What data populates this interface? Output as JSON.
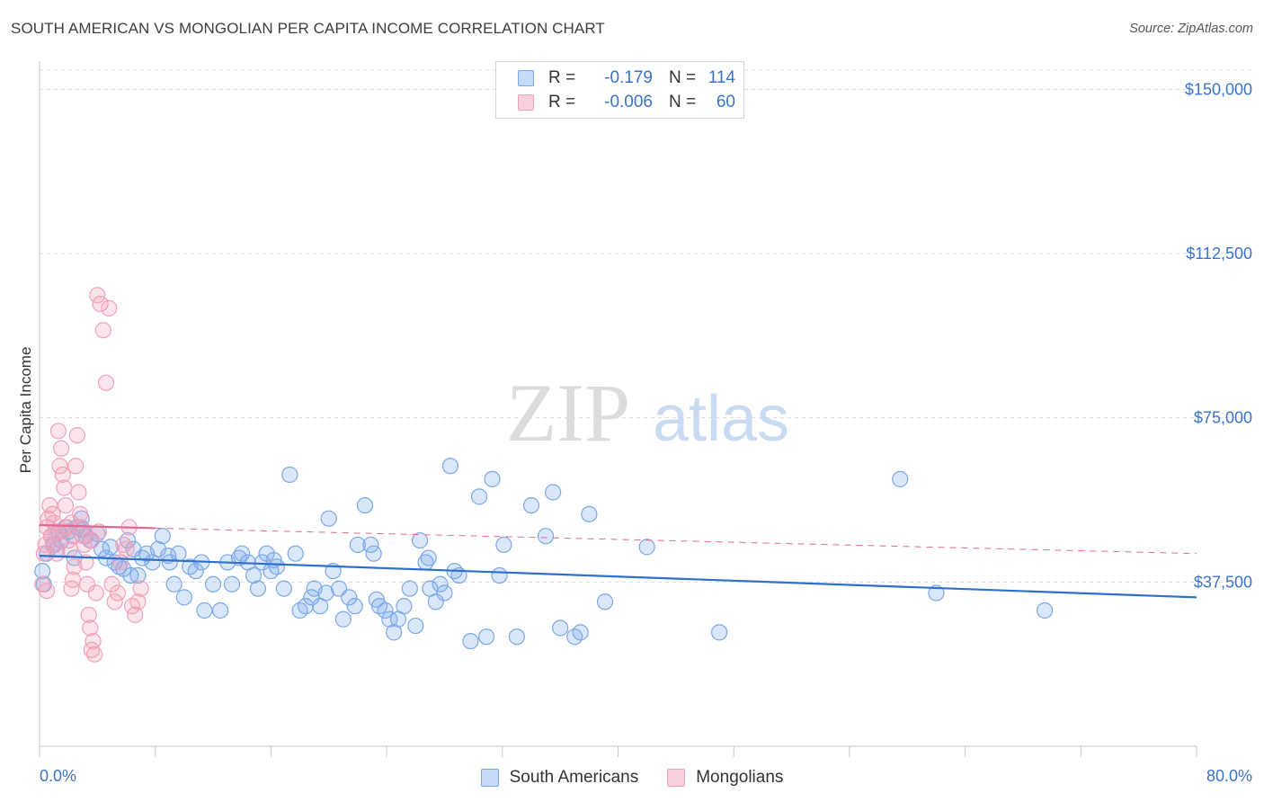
{
  "title": "SOUTH AMERICAN VS MONGOLIAN PER CAPITA INCOME CORRELATION CHART",
  "source": "Source: ZipAtlas.com",
  "watermark": {
    "zip": "ZIP",
    "atlas": "atlas"
  },
  "legend": {
    "rows": [
      {
        "r_label": "R =",
        "r_value": "-0.179",
        "n_label": "N =",
        "n_value": "114",
        "color": "#7aa8e8"
      },
      {
        "r_label": "R =",
        "r_value": "-0.006",
        "n_label": "N =",
        "n_value": "60",
        "color": "#f2a0b8"
      }
    ]
  },
  "bottom_legend": {
    "south_americans": "South Americans",
    "mongolians": "Mongolians"
  },
  "chart_data": {
    "type": "scatter",
    "title": "SOUTH AMERICAN VS MONGOLIAN PER CAPITA INCOME CORRELATION CHART",
    "xlabel": "",
    "ylabel": "Per Capita Income",
    "xlim": [
      0,
      80
    ],
    "ylim": [
      0,
      155000
    ],
    "x_tick_labels": [
      "0.0%",
      "80.0%"
    ],
    "y_ticks": [
      37500,
      75000,
      112500,
      150000
    ],
    "y_tick_labels": [
      "$37,500",
      "$75,000",
      "$112,500",
      "$150,000"
    ],
    "grid": true,
    "legend_position": "top-center",
    "series": [
      {
        "name": "South Americans",
        "color": "#7aa8e8",
        "line_color": "#2f6fce",
        "trend": {
          "x": [
            0,
            80
          ],
          "y": [
            43500,
            34000
          ],
          "style": "solid"
        },
        "points": [
          [
            0.2,
            40000
          ],
          [
            0.3,
            37000
          ],
          [
            0.5,
            44000
          ],
          [
            0.8,
            48000
          ],
          [
            1.0,
            46000
          ],
          [
            1.3,
            49000
          ],
          [
            1.5,
            47000
          ],
          [
            1.8,
            50000
          ],
          [
            2.0,
            49000
          ],
          [
            2.3,
            48000
          ],
          [
            2.6,
            50000
          ],
          [
            2.9,
            52000
          ],
          [
            3.2,
            48000
          ],
          [
            3.5,
            47000
          ],
          [
            4.0,
            48500
          ],
          [
            4.3,
            45000
          ],
          [
            4.6,
            43000
          ],
          [
            4.9,
            45500
          ],
          [
            5.2,
            42000
          ],
          [
            5.5,
            41000
          ],
          [
            6.1,
            47000
          ],
          [
            6.5,
            45000
          ],
          [
            6.8,
            39000
          ],
          [
            7.1,
            43000
          ],
          [
            7.4,
            44000
          ],
          [
            7.8,
            42000
          ],
          [
            8.2,
            45000
          ],
          [
            8.5,
            48000
          ],
          [
            9.0,
            42000
          ],
          [
            9.3,
            37000
          ],
          [
            9.6,
            44000
          ],
          [
            10.0,
            34000
          ],
          [
            10.4,
            41000
          ],
          [
            10.8,
            40000
          ],
          [
            11.2,
            42000
          ],
          [
            11.4,
            31000
          ],
          [
            12.0,
            37000
          ],
          [
            12.5,
            31000
          ],
          [
            13.0,
            42000
          ],
          [
            13.3,
            37000
          ],
          [
            13.8,
            43000
          ],
          [
            14.0,
            44000
          ],
          [
            14.4,
            42000
          ],
          [
            14.8,
            39000
          ],
          [
            15.1,
            36000
          ],
          [
            15.4,
            42000
          ],
          [
            15.7,
            44000
          ],
          [
            16.0,
            40000
          ],
          [
            16.4,
            41000
          ],
          [
            16.9,
            36000
          ],
          [
            17.3,
            62000
          ],
          [
            17.7,
            44000
          ],
          [
            18.0,
            31000
          ],
          [
            18.4,
            32000
          ],
          [
            18.8,
            34000
          ],
          [
            19.0,
            36000
          ],
          [
            19.4,
            32000
          ],
          [
            20.0,
            52000
          ],
          [
            20.3,
            40000
          ],
          [
            20.7,
            36000
          ],
          [
            21.0,
            29000
          ],
          [
            21.4,
            34000
          ],
          [
            21.8,
            32000
          ],
          [
            22.0,
            46000
          ],
          [
            22.5,
            55000
          ],
          [
            22.9,
            46000
          ],
          [
            23.1,
            44000
          ],
          [
            23.5,
            32000
          ],
          [
            23.9,
            31000
          ],
          [
            24.2,
            29000
          ],
          [
            24.5,
            26000
          ],
          [
            24.8,
            29000
          ],
          [
            25.2,
            32000
          ],
          [
            25.6,
            36000
          ],
          [
            26.0,
            27500
          ],
          [
            26.3,
            47000
          ],
          [
            26.7,
            42000
          ],
          [
            27.0,
            36000
          ],
          [
            27.4,
            33000
          ],
          [
            27.7,
            37000
          ],
          [
            28.0,
            35000
          ],
          [
            28.4,
            64000
          ],
          [
            28.7,
            40000
          ],
          [
            29.0,
            39000
          ],
          [
            29.8,
            24000
          ],
          [
            30.4,
            57000
          ],
          [
            30.9,
            25000
          ],
          [
            31.3,
            61000
          ],
          [
            31.8,
            39000
          ],
          [
            32.1,
            46000
          ],
          [
            33.0,
            25000
          ],
          [
            34.0,
            55000
          ],
          [
            35.0,
            48000
          ],
          [
            35.5,
            58000
          ],
          [
            36.0,
            27000
          ],
          [
            37.0,
            25000
          ],
          [
            37.4,
            26000
          ],
          [
            38.0,
            53000
          ],
          [
            39.1,
            33000
          ],
          [
            42.0,
            45500
          ],
          [
            47.0,
            26000
          ],
          [
            59.5,
            61000
          ],
          [
            62.0,
            35000
          ],
          [
            69.5,
            31000
          ],
          [
            1.2,
            45000
          ],
          [
            2.4,
            43000
          ],
          [
            3.0,
            49500
          ],
          [
            5.8,
            40500
          ],
          [
            6.3,
            39000
          ],
          [
            8.9,
            43500
          ],
          [
            16.2,
            42500
          ],
          [
            19.8,
            35000
          ],
          [
            23.3,
            33500
          ],
          [
            26.9,
            43000
          ]
        ]
      },
      {
        "name": "Mongolians",
        "color": "#f2a0b8",
        "line_color": "#e06890",
        "trend": {
          "x": [
            0,
            8
          ],
          "y": [
            50500,
            49800
          ],
          "style": "solid"
        },
        "trend_ext": {
          "x": [
            8,
            80
          ],
          "y": [
            49800,
            44000
          ],
          "style": "dashed"
        },
        "points": [
          [
            0.2,
            37000
          ],
          [
            0.3,
            44000
          ],
          [
            0.4,
            46000
          ],
          [
            0.5,
            50000
          ],
          [
            0.6,
            52000
          ],
          [
            0.7,
            55000
          ],
          [
            0.8,
            48000
          ],
          [
            0.9,
            46000
          ],
          [
            1.0,
            51000
          ],
          [
            1.1,
            49000
          ],
          [
            1.2,
            44000
          ],
          [
            1.3,
            72000
          ],
          [
            1.4,
            64000
          ],
          [
            1.5,
            68000
          ],
          [
            1.6,
            62000
          ],
          [
            1.7,
            59000
          ],
          [
            1.8,
            55000
          ],
          [
            1.9,
            50000
          ],
          [
            2.0,
            47000
          ],
          [
            2.1,
            45000
          ],
          [
            2.2,
            36000
          ],
          [
            2.3,
            38000
          ],
          [
            2.4,
            41000
          ],
          [
            2.5,
            64000
          ],
          [
            2.6,
            71000
          ],
          [
            2.7,
            58000
          ],
          [
            2.8,
            53000
          ],
          [
            2.9,
            50000
          ],
          [
            3.0,
            48000
          ],
          [
            3.1,
            46000
          ],
          [
            3.2,
            42000
          ],
          [
            3.3,
            37000
          ],
          [
            3.4,
            30000
          ],
          [
            3.5,
            27000
          ],
          [
            3.6,
            22000
          ],
          [
            3.7,
            24000
          ],
          [
            3.8,
            21000
          ],
          [
            3.9,
            35000
          ],
          [
            4.0,
            103000
          ],
          [
            4.2,
            101000
          ],
          [
            4.4,
            95000
          ],
          [
            4.6,
            83000
          ],
          [
            4.8,
            100000
          ],
          [
            5.0,
            37000
          ],
          [
            5.2,
            33000
          ],
          [
            5.4,
            35000
          ],
          [
            5.6,
            42000
          ],
          [
            5.8,
            46000
          ],
          [
            6.0,
            45000
          ],
          [
            6.2,
            50000
          ],
          [
            6.4,
            32000
          ],
          [
            6.6,
            30000
          ],
          [
            6.8,
            33000
          ],
          [
            7.0,
            36000
          ],
          [
            0.9,
            53000
          ],
          [
            1.6,
            49000
          ],
          [
            2.2,
            51000
          ],
          [
            3.6,
            47000
          ],
          [
            4.1,
            49000
          ],
          [
            0.5,
            35500
          ]
        ]
      }
    ]
  }
}
